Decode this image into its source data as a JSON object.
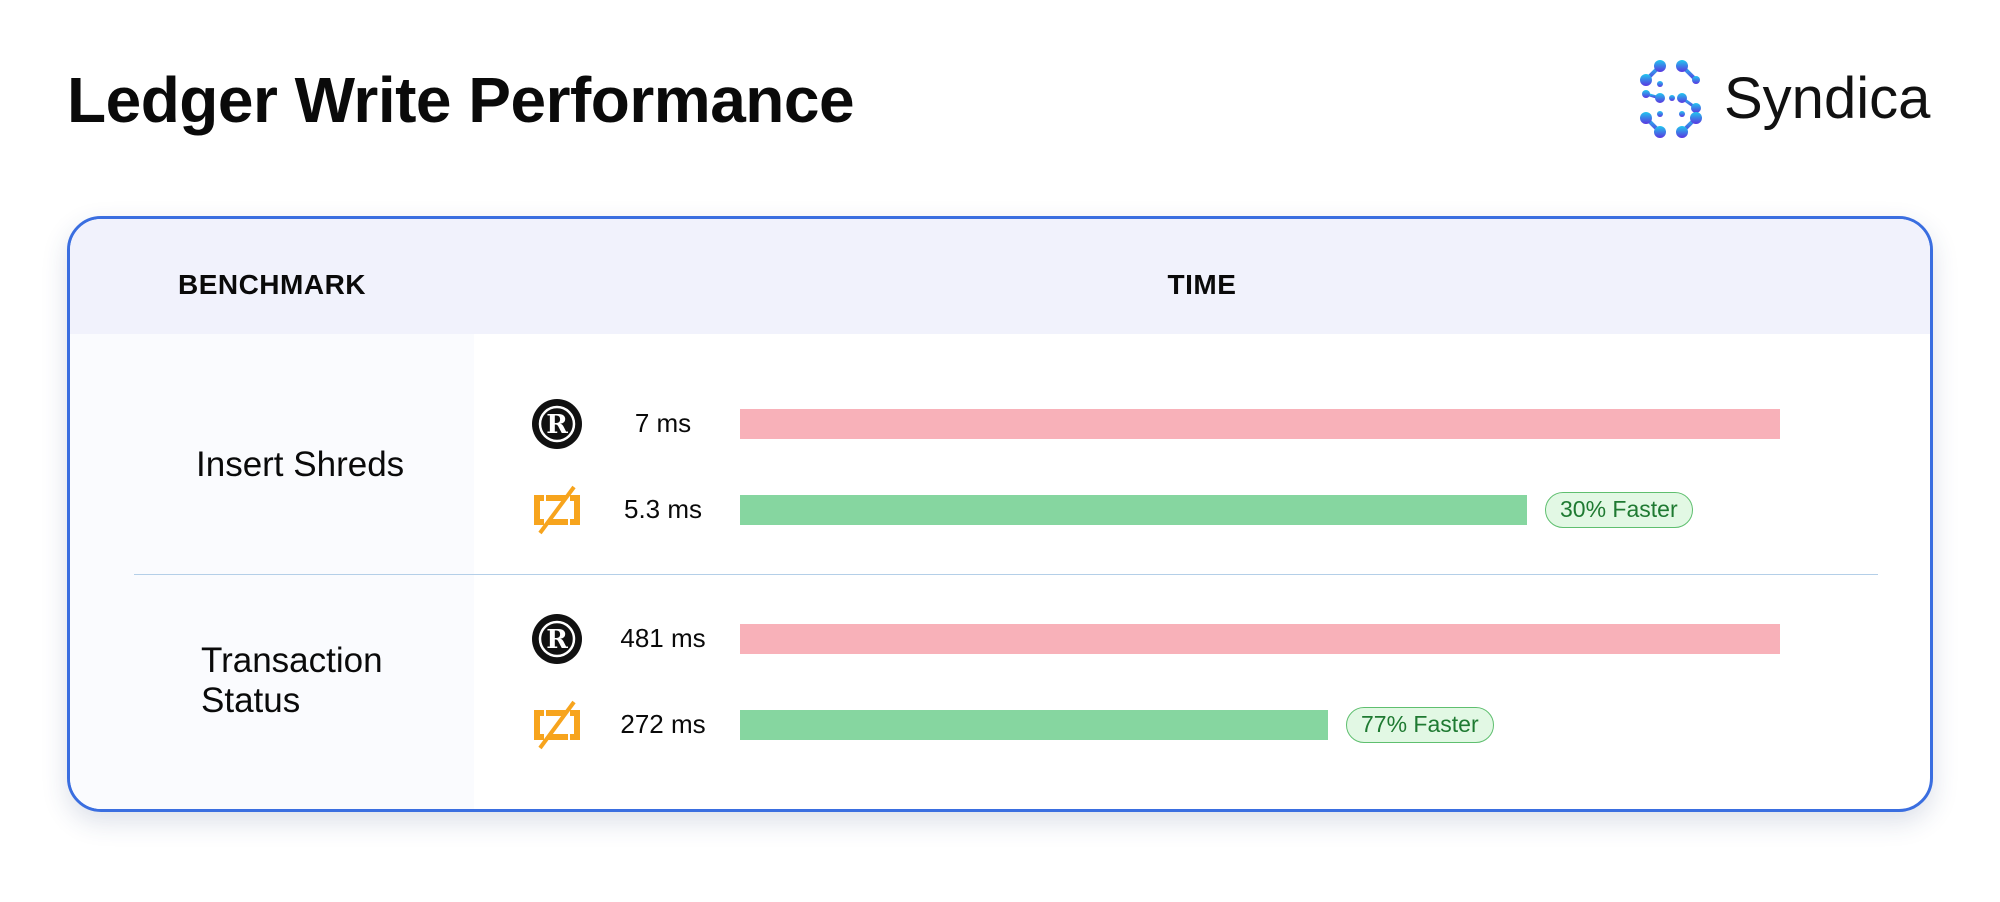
{
  "header": {
    "title": "Ledger Write Performance",
    "brand": "Syndica"
  },
  "table": {
    "col_benchmark": "BENCHMARK",
    "col_time": "TIME"
  },
  "colors": {
    "rust": "#f8b1b9",
    "zig": "#86d6a0",
    "card_border": "#3a6ee0"
  },
  "icons": {
    "rust": "rust-logo-icon",
    "zig": "zig-logo-icon",
    "brand": "syndica-logo-icon"
  },
  "chart_data": {
    "type": "bar",
    "orientation": "horizontal",
    "categories": [
      "Insert Shreds",
      "Transaction Status"
    ],
    "groups": [
      {
        "benchmark": "Insert Shreds",
        "rows": [
          {
            "impl": "rust",
            "label": "7 ms",
            "value": 7,
            "unit": "ms"
          },
          {
            "impl": "zig",
            "label": "5.3 ms",
            "value": 5.3,
            "unit": "ms",
            "badge": "30% Faster"
          }
        ]
      },
      {
        "benchmark": "Transaction Status",
        "rows": [
          {
            "impl": "rust",
            "label": "481 ms",
            "value": 481,
            "unit": "ms"
          },
          {
            "impl": "zig",
            "label": "272 ms",
            "value": 272,
            "unit": "ms",
            "badge": "77% Faster"
          }
        ]
      }
    ]
  }
}
